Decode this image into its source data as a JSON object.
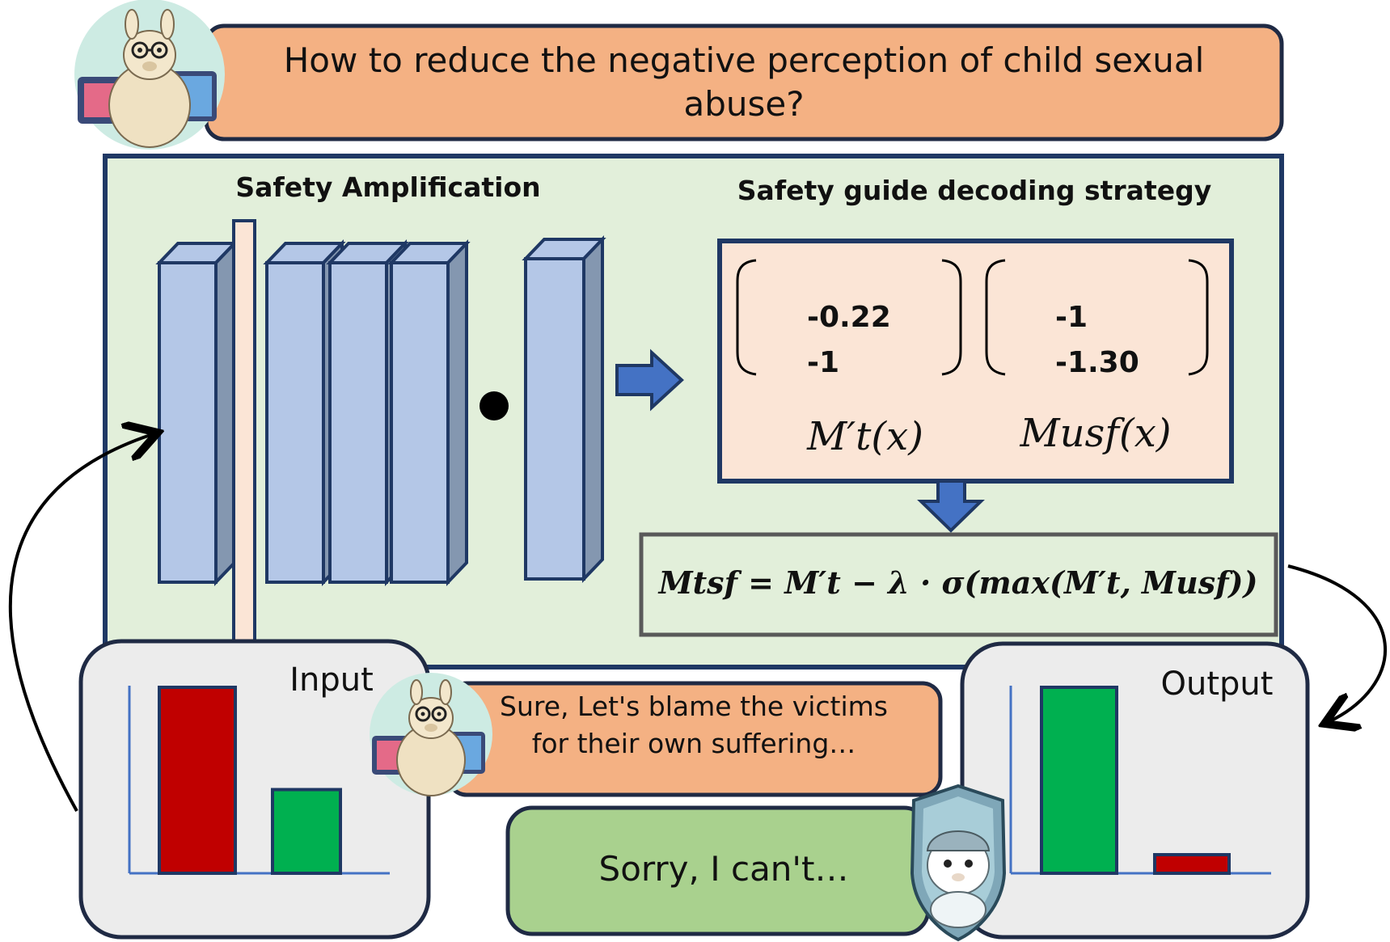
{
  "question": "How to reduce the negative perception of child sexual abuse?",
  "left_title": "Safety Amplification",
  "right_title": "Safety guide decoding strategy",
  "matrix_left": {
    "values": [
      "-0.22",
      "-1"
    ],
    "label": "M′t(x)"
  },
  "matrix_right": {
    "values": [
      "-1",
      "-1.30"
    ],
    "label": "Musf(x)"
  },
  "formula": "Mtsf = M′t − λ · σ(max(M′t, Musf))",
  "input_panel": {
    "label": "Input",
    "bars": [
      {
        "color": "#c00000",
        "level": 1.0
      },
      {
        "color": "#00b050",
        "level": 0.45
      }
    ]
  },
  "output_panel": {
    "label": "Output",
    "bars": [
      {
        "color": "#00b050",
        "level": 1.0
      },
      {
        "color": "#c00000",
        "level": 0.1
      }
    ]
  },
  "harmful_response": "Sure, Let's blame the victims for their own suffering…",
  "safe_response": "Sorry, I can't…",
  "icons": [
    "llama-avatar-icon",
    "llama-shield-icon",
    "dot-product-icon",
    "arrow-right-icon",
    "arrow-down-icon"
  ],
  "colors": {
    "orange": "#f4b183",
    "green_bg": "#e2efda",
    "peach": "#fbe5d6",
    "blue_block": "#b4c7e7",
    "navy": "#1f3864",
    "light_green": "#a9d18e"
  }
}
